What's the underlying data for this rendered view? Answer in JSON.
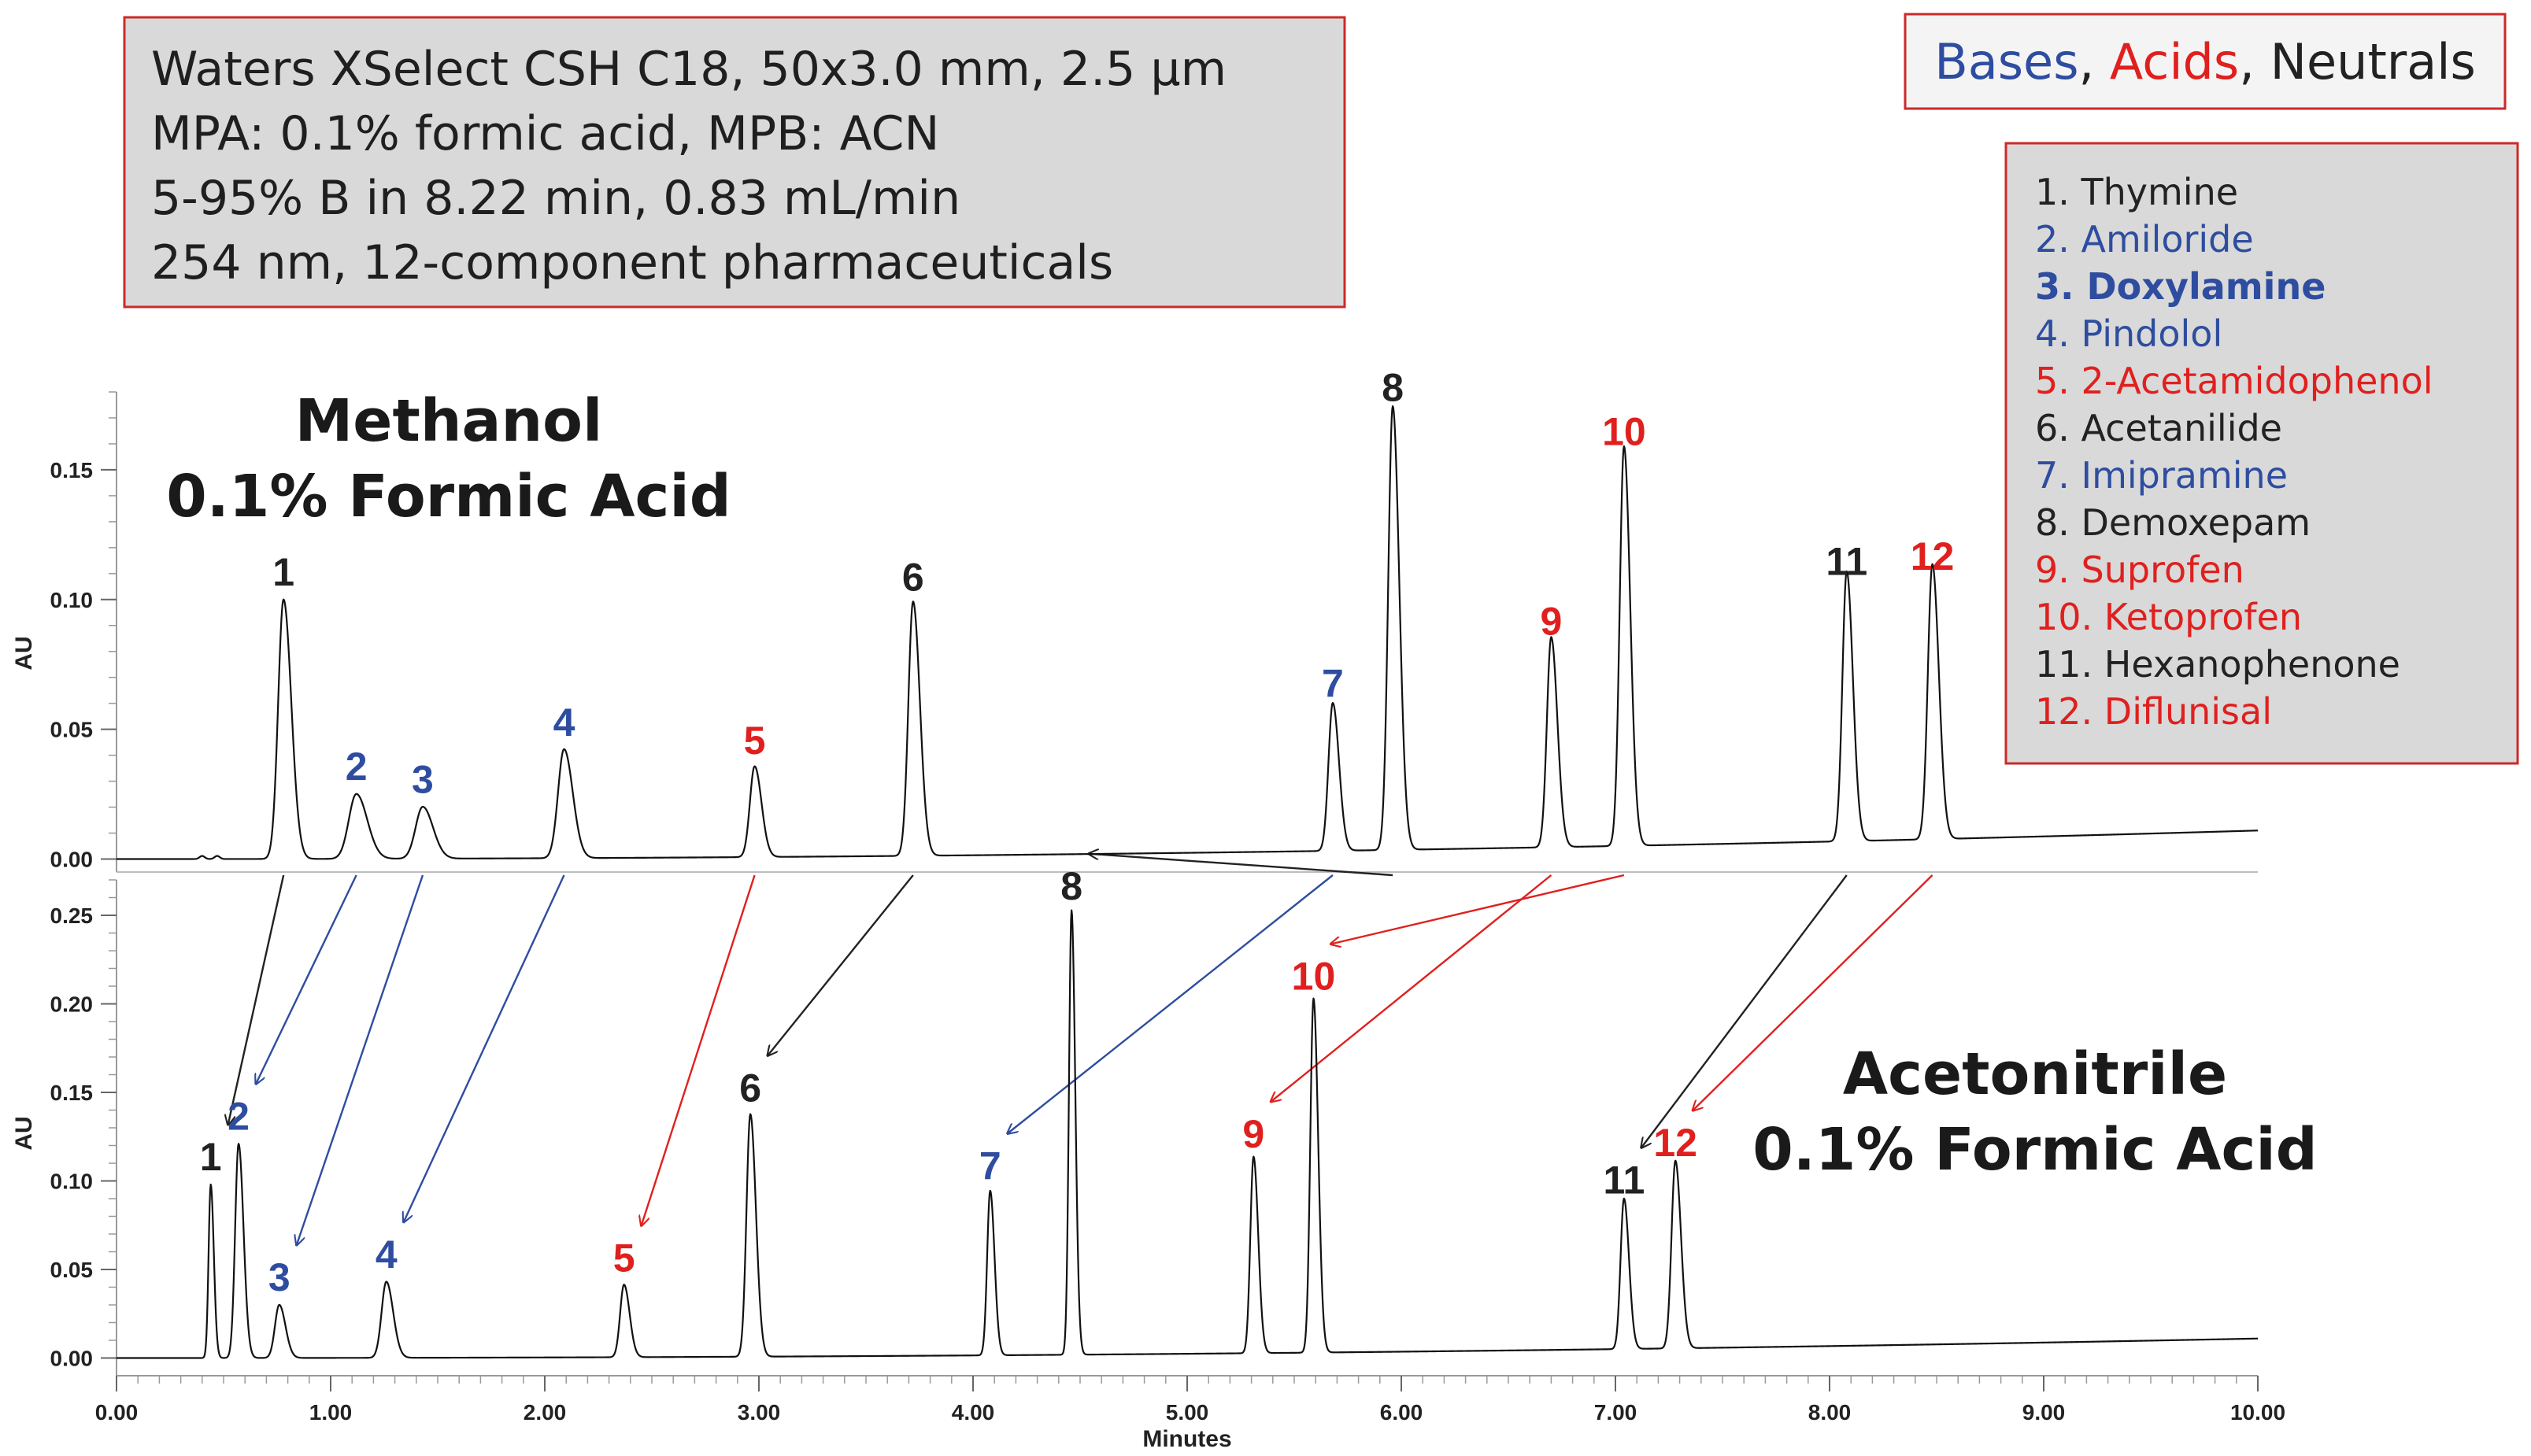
{
  "conditions_box": {
    "lines": [
      "Waters XSelect CSH C18, 50x3.0 mm, 2.5 µm",
      "MPA: 0.1% formic acid, MPB: ACN",
      "5-95% B in 8.22 min, 0.83 mL/min",
      "254 nm, 12-component pharmaceuticals"
    ]
  },
  "class_legend": {
    "items": [
      {
        "label": "Bases",
        "color": "#2e4da0"
      },
      {
        "label": ", ",
        "color": "#222222"
      },
      {
        "label": "Acids",
        "color": "#e0201e"
      },
      {
        "label": ", ",
        "color": "#222222"
      },
      {
        "label": "Neutrals",
        "color": "#222222"
      }
    ]
  },
  "compound_legend": {
    "items": [
      {
        "label": "1. Thymine",
        "color": "#222222",
        "bold": false
      },
      {
        "label": "2. Amiloride",
        "color": "#2e4da0",
        "bold": false
      },
      {
        "label": "3. Doxylamine",
        "color": "#2e4da0",
        "bold": true
      },
      {
        "label": "4. Pindolol",
        "color": "#2e4da0",
        "bold": false
      },
      {
        "label": "5. 2-Acetamidophenol",
        "color": "#e0201e",
        "bold": false
      },
      {
        "label": "6. Acetanilide",
        "color": "#222222",
        "bold": false
      },
      {
        "label": "7. Imipramine",
        "color": "#2e4da0",
        "bold": false
      },
      {
        "label": "8. Demoxepam",
        "color": "#222222",
        "bold": false
      },
      {
        "label": "9. Suprofen",
        "color": "#e0201e",
        "bold": false
      },
      {
        "label": "10. Ketoprofen",
        "color": "#e0201e",
        "bold": false
      },
      {
        "label": "11. Hexanophenone",
        "color": "#222222",
        "bold": false
      },
      {
        "label": "12. Diflunisal",
        "color": "#e0201e",
        "bold": false
      }
    ]
  },
  "colors": {
    "base": "#2e4da0",
    "acid": "#e0201e",
    "neutral": "#222222"
  },
  "chart_data": [
    {
      "type": "line",
      "title": "Methanol 0.1% Formic Acid",
      "title_lines": [
        "Methanol",
        "0.1% Formic Acid"
      ],
      "xlabel": "",
      "ylabel": "AU",
      "xlim": [
        0,
        10
      ],
      "ylim": [
        -0.005,
        0.18
      ],
      "yticks": [
        0.0,
        0.05,
        0.1,
        0.15
      ],
      "ytick_labels": [
        "0.00",
        "0.05",
        "0.10",
        "0.15"
      ],
      "baseline": {
        "start": 0.0,
        "end": 0.011
      },
      "peaks": [
        {
          "label": "1",
          "rt": 0.78,
          "height": 0.1,
          "width": 0.025,
          "class": "neutral"
        },
        {
          "label": "2",
          "rt": 1.12,
          "height": 0.025,
          "width": 0.035,
          "class": "base"
        },
        {
          "label": "3",
          "rt": 1.43,
          "height": 0.02,
          "width": 0.033,
          "class": "base"
        },
        {
          "label": "4",
          "rt": 2.09,
          "height": 0.042,
          "width": 0.028,
          "class": "base"
        },
        {
          "label": "5",
          "rt": 2.98,
          "height": 0.035,
          "width": 0.022,
          "class": "acid"
        },
        {
          "label": "6",
          "rt": 3.72,
          "height": 0.098,
          "width": 0.022,
          "class": "neutral"
        },
        {
          "label": "7",
          "rt": 5.68,
          "height": 0.057,
          "width": 0.02,
          "class": "base"
        },
        {
          "label": "8",
          "rt": 5.96,
          "height": 0.171,
          "width": 0.021,
          "class": "neutral"
        },
        {
          "label": "9",
          "rt": 6.7,
          "height": 0.081,
          "width": 0.02,
          "class": "acid"
        },
        {
          "label": "10",
          "rt": 7.04,
          "height": 0.154,
          "width": 0.02,
          "class": "acid"
        },
        {
          "label": "11",
          "rt": 8.08,
          "height": 0.104,
          "width": 0.02,
          "class": "neutral"
        },
        {
          "label": "12",
          "rt": 8.48,
          "height": 0.106,
          "width": 0.021,
          "class": "acid"
        }
      ]
    },
    {
      "type": "line",
      "title": "Acetonitrile 0.1% Formic Acid",
      "title_lines": [
        "Acetonitrile",
        "0.1% Formic Acid"
      ],
      "xlabel": "Minutes",
      "ylabel": "AU",
      "xlim": [
        0,
        10
      ],
      "ylim": [
        -0.01,
        0.27
      ],
      "xticks": [
        0,
        1,
        2,
        3,
        4,
        5,
        6,
        7,
        8,
        9,
        10
      ],
      "xtick_labels": [
        "0.00",
        "1.00",
        "2.00",
        "3.00",
        "4.00",
        "5.00",
        "6.00",
        "7.00",
        "8.00",
        "9.00",
        "10.00"
      ],
      "yticks": [
        0.0,
        0.05,
        0.1,
        0.15,
        0.2,
        0.25
      ],
      "ytick_labels": [
        "0.00",
        "0.05",
        "0.10",
        "0.15",
        "0.20",
        "0.25"
      ],
      "baseline": {
        "start": 0.0,
        "end": 0.011
      },
      "peaks": [
        {
          "label": "1",
          "rt": 0.44,
          "height": 0.098,
          "width": 0.01,
          "class": "neutral"
        },
        {
          "label": "2",
          "rt": 0.57,
          "height": 0.121,
          "width": 0.016,
          "class": "base"
        },
        {
          "label": "3",
          "rt": 0.76,
          "height": 0.03,
          "width": 0.02,
          "class": "base"
        },
        {
          "label": "4",
          "rt": 1.26,
          "height": 0.043,
          "width": 0.022,
          "class": "base"
        },
        {
          "label": "5",
          "rt": 2.37,
          "height": 0.041,
          "width": 0.018,
          "class": "acid"
        },
        {
          "label": "6",
          "rt": 2.96,
          "height": 0.137,
          "width": 0.018,
          "class": "neutral"
        },
        {
          "label": "7",
          "rt": 4.08,
          "height": 0.093,
          "width": 0.014,
          "class": "base"
        },
        {
          "label": "8",
          "rt": 4.46,
          "height": 0.251,
          "width": 0.012,
          "class": "neutral"
        },
        {
          "label": "9",
          "rt": 5.31,
          "height": 0.111,
          "width": 0.015,
          "class": "acid"
        },
        {
          "label": "10",
          "rt": 5.59,
          "height": 0.2,
          "width": 0.015,
          "class": "acid"
        },
        {
          "label": "11",
          "rt": 7.04,
          "height": 0.085,
          "width": 0.016,
          "class": "neutral"
        },
        {
          "label": "12",
          "rt": 7.28,
          "height": 0.106,
          "width": 0.018,
          "class": "acid"
        }
      ]
    }
  ]
}
